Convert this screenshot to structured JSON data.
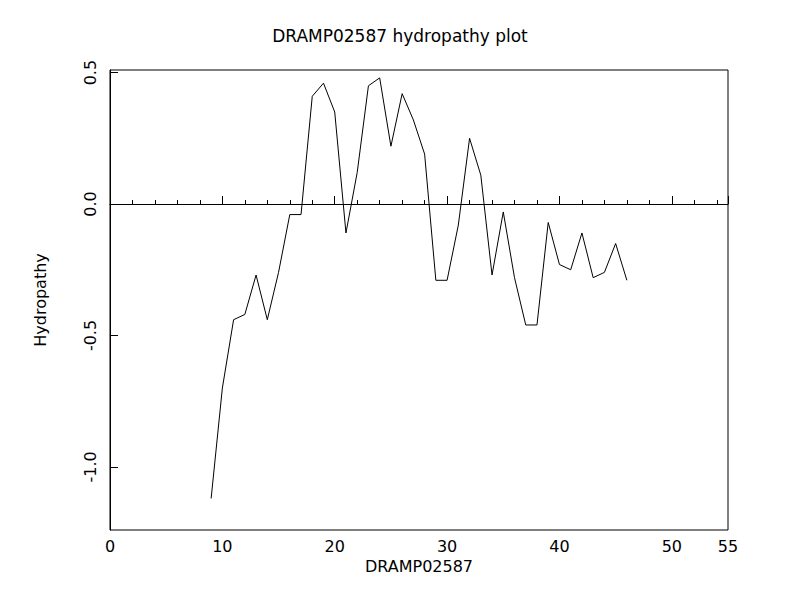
{
  "chart_data": {
    "type": "line",
    "title": "DRAMP02587 hydropathy plot",
    "x_label": "DRAMP02587",
    "y_label": "Hydropathy",
    "x": [
      9,
      10,
      11,
      12,
      13,
      14,
      15,
      16,
      17,
      18,
      19,
      20,
      21,
      22,
      23,
      24,
      25,
      26,
      27,
      28,
      29,
      30,
      31,
      32,
      33,
      34,
      35,
      36,
      37,
      38,
      39,
      40,
      41,
      42,
      43,
      44,
      45,
      46
    ],
    "values": [
      -1.12,
      -0.7,
      -0.44,
      -0.42,
      -0.27,
      -0.44,
      -0.26,
      -0.04,
      -0.04,
      0.41,
      0.46,
      0.35,
      -0.11,
      0.12,
      0.45,
      0.48,
      0.22,
      0.42,
      0.32,
      0.19,
      -0.29,
      -0.29,
      -0.08,
      0.25,
      0.11,
      -0.27,
      -0.03,
      -0.28,
      -0.46,
      -0.46,
      -0.07,
      -0.23,
      -0.25,
      -0.11,
      -0.28,
      -0.26,
      -0.15,
      -0.29
    ],
    "color": "#000000",
    "xlim": [
      0,
      55
    ],
    "xticks": [
      0,
      10,
      20,
      30,
      40,
      50
    ],
    "ylim": [
      -1.24,
      0.51
    ],
    "yticks": [
      {
        "value": -1.0,
        "label": "-1.0"
      },
      {
        "value": -0.5,
        "label": "-0.5"
      },
      {
        "value": 0,
        "label": "0.0"
      },
      {
        "value": 0.5,
        "label": "0.5"
      }
    ],
    "grid": false
  }
}
